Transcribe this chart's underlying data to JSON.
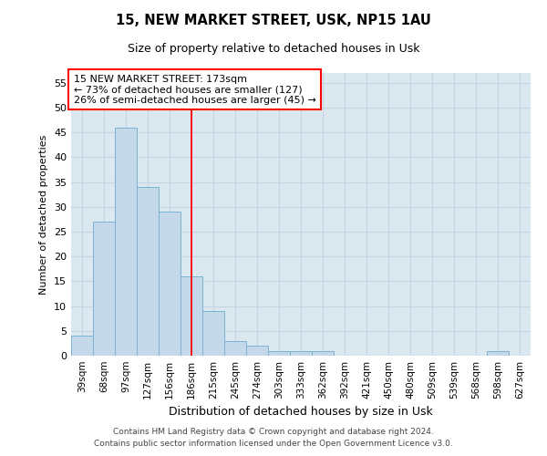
{
  "title1": "15, NEW MARKET STREET, USK, NP15 1AU",
  "title2": "Size of property relative to detached houses in Usk",
  "xlabel": "Distribution of detached houses by size in Usk",
  "ylabel": "Number of detached properties",
  "categories": [
    "39sqm",
    "68sqm",
    "97sqm",
    "127sqm",
    "156sqm",
    "186sqm",
    "215sqm",
    "245sqm",
    "274sqm",
    "303sqm",
    "333sqm",
    "362sqm",
    "392sqm",
    "421sqm",
    "450sqm",
    "480sqm",
    "509sqm",
    "539sqm",
    "568sqm",
    "598sqm",
    "627sqm"
  ],
  "values": [
    4,
    27,
    46,
    34,
    29,
    16,
    9,
    3,
    2,
    1,
    1,
    1,
    0,
    0,
    0,
    0,
    0,
    0,
    0,
    1,
    0
  ],
  "bar_color": "#c5d8ea",
  "bar_edge_color": "#7ab4d4",
  "vline_x": 5.0,
  "vline_color": "red",
  "annotation_text": "15 NEW MARKET STREET: 173sqm\n← 73% of detached houses are smaller (127)\n26% of semi-detached houses are larger (45) →",
  "annotation_box_color": "white",
  "annotation_box_edge_color": "red",
  "ylim": [
    0,
    57
  ],
  "yticks": [
    0,
    5,
    10,
    15,
    20,
    25,
    30,
    35,
    40,
    45,
    50,
    55
  ],
  "grid_color": "#c8d4e4",
  "background_color": "#dce8f0",
  "footer1": "Contains HM Land Registry data © Crown copyright and database right 2024.",
  "footer2": "Contains public sector information licensed under the Open Government Licence v3.0."
}
